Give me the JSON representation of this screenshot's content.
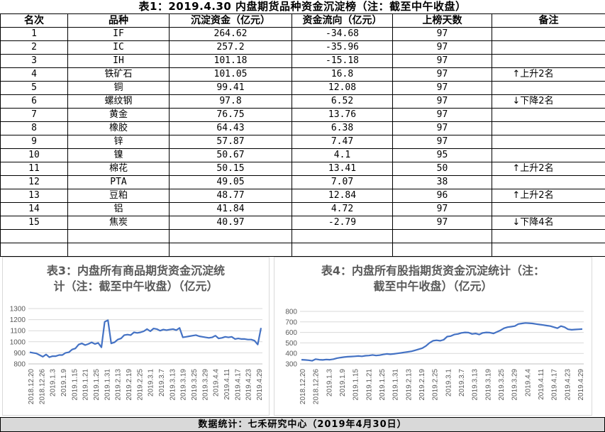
{
  "table": {
    "title": "表1：2019.4.30 内盘期货品种资金沉淀榜（注：截至中午收盘）",
    "headers": [
      "名次",
      "品种",
      "沉淀资金（亿元）",
      "资金流向（亿元）",
      "上榜天数",
      "备注"
    ],
    "rows": [
      [
        "1",
        "IF",
        "264.62",
        "-34.68",
        "97",
        ""
      ],
      [
        "2",
        "IC",
        "257.2",
        "-35.96",
        "97",
        ""
      ],
      [
        "3",
        "IH",
        "101.18",
        "-15.18",
        "97",
        ""
      ],
      [
        "4",
        "铁矿石",
        "101.05",
        "16.8",
        "97",
        "↑上升2名"
      ],
      [
        "5",
        "铜",
        "99.41",
        "12.08",
        "97",
        ""
      ],
      [
        "6",
        "螺纹钢",
        "97.8",
        "6.52",
        "97",
        "↓下降2名"
      ],
      [
        "7",
        "黄金",
        "76.75",
        "13.76",
        "97",
        ""
      ],
      [
        "8",
        "橡胶",
        "64.43",
        "6.38",
        "97",
        ""
      ],
      [
        "9",
        "锌",
        "57.87",
        "7.47",
        "97",
        ""
      ],
      [
        "10",
        "镍",
        "50.67",
        "4.1",
        "95",
        ""
      ],
      [
        "11",
        "棉花",
        "50.15",
        "13.41",
        "50",
        "↑上升2名"
      ],
      [
        "12",
        "PTA",
        "49.05",
        "7.07",
        "38",
        ""
      ],
      [
        "13",
        "豆粕",
        "48.77",
        "12.84",
        "96",
        "↑上升2名"
      ],
      [
        "14",
        "铝",
        "41.84",
        "4.72",
        "97",
        ""
      ],
      [
        "15",
        "焦炭",
        "40.97",
        "-2.79",
        "97",
        "↓下降4名"
      ],
      [
        "",
        "",
        "",
        "",
        "",
        ""
      ],
      [
        "",
        "",
        "",
        "",
        "",
        ""
      ]
    ]
  },
  "footer": {
    "text": "数据统计：七禾研究中心（2019年4月30日）"
  },
  "chart_data": [
    {
      "type": "line",
      "title": "表3：内盘所有商品期货资金沉淀统计（注：截至中午收盘）（亿元）",
      "title_lines": [
        "表3：内盘所有商品期货资金沉淀统",
        "计（注：截至中午收盘）（亿元）"
      ],
      "xlabel": "",
      "ylabel": "",
      "ylim": [
        800,
        1300
      ],
      "yticks": [
        800,
        900,
        1000,
        1100,
        1200,
        1300
      ],
      "x_tick_labels": [
        "2018.12.20",
        "2018.12.26",
        "2019.1.3",
        "2019.1.9",
        "2019.1.15",
        "2019.1.21",
        "2019.1.25",
        "2019.1.31",
        "2019.2.13",
        "2019.2.19",
        "2019.2.25",
        "2019.3.1",
        "2019.3.7",
        "2019.3.13",
        "2019.3.19",
        "2019.3.25",
        "2019.3.29",
        "2019.4.4",
        "2019.4.11",
        "2019.4.17",
        "2019.4.23",
        "2019.4.29"
      ],
      "line_color": "#4472c4",
      "series": [
        {
          "values": [
            905,
            900,
            895,
            880,
            865,
            885,
            860,
            870,
            870,
            880,
            880,
            900,
            905,
            930,
            940,
            975,
            985,
            970,
            980,
            995,
            980,
            990,
            950,
            1180,
            1195,
            985,
            995,
            1020,
            1030,
            1060,
            1065,
            1060,
            1085,
            1080,
            1085,
            1095,
            1115,
            1095,
            1120,
            1115,
            1100,
            1110,
            1105,
            1110,
            1115,
            1105,
            1125,
            1040,
            1045,
            1050,
            1055,
            1060,
            1050,
            1045,
            1040,
            1035,
            1040,
            1055,
            1030,
            1035,
            1045,
            1040,
            1045,
            1025,
            1030,
            1025,
            1025,
            1020,
            1020,
            1010,
            975,
            1125
          ]
        }
      ]
    },
    {
      "type": "line",
      "title": "表4：内盘所有股指期货资金沉淀统计（注：截至中午收盘）（亿元）",
      "title_lines": [
        "表4：内盘所有股指期货资金沉淀统计（注：",
        "截至中午收盘）（亿元）"
      ],
      "xlabel": "",
      "ylabel": "",
      "ylim": [
        300,
        800
      ],
      "yticks": [
        300,
        400,
        500,
        600,
        700,
        800
      ],
      "x_tick_labels": [
        "2018.12.20",
        "2018.12.26",
        "2019.1.3",
        "2019.1.9",
        "2019.1.15",
        "2019.1.21",
        "2019.1.25",
        "2019.1.31",
        "2019.2.13",
        "2019.2.19",
        "2019.2.25",
        "2019.3.1",
        "2019.3.7",
        "2019.3.13",
        "2019.3.19",
        "2019.3.25",
        "2019.3.29",
        "2019.4.4",
        "2019.4.11",
        "2019.4.17",
        "2019.4.23",
        "2019.4.29"
      ],
      "line_color": "#4472c4",
      "series": [
        {
          "values": [
            340,
            338,
            335,
            330,
            345,
            340,
            338,
            342,
            340,
            345,
            355,
            360,
            365,
            368,
            370,
            372,
            375,
            372,
            378,
            380,
            385,
            380,
            383,
            390,
            395,
            392,
            395,
            400,
            405,
            410,
            415,
            420,
            430,
            440,
            450,
            470,
            500,
            520,
            525,
            520,
            530,
            560,
            565,
            580,
            585,
            595,
            600,
            598,
            585,
            590,
            580,
            595,
            600,
            598,
            590,
            605,
            620,
            640,
            650,
            655,
            660,
            680,
            685,
            690,
            688,
            685,
            680,
            675,
            670,
            665,
            660,
            650,
            640,
            660,
            650,
            630,
            625,
            628,
            630,
            632
          ]
        }
      ]
    }
  ]
}
